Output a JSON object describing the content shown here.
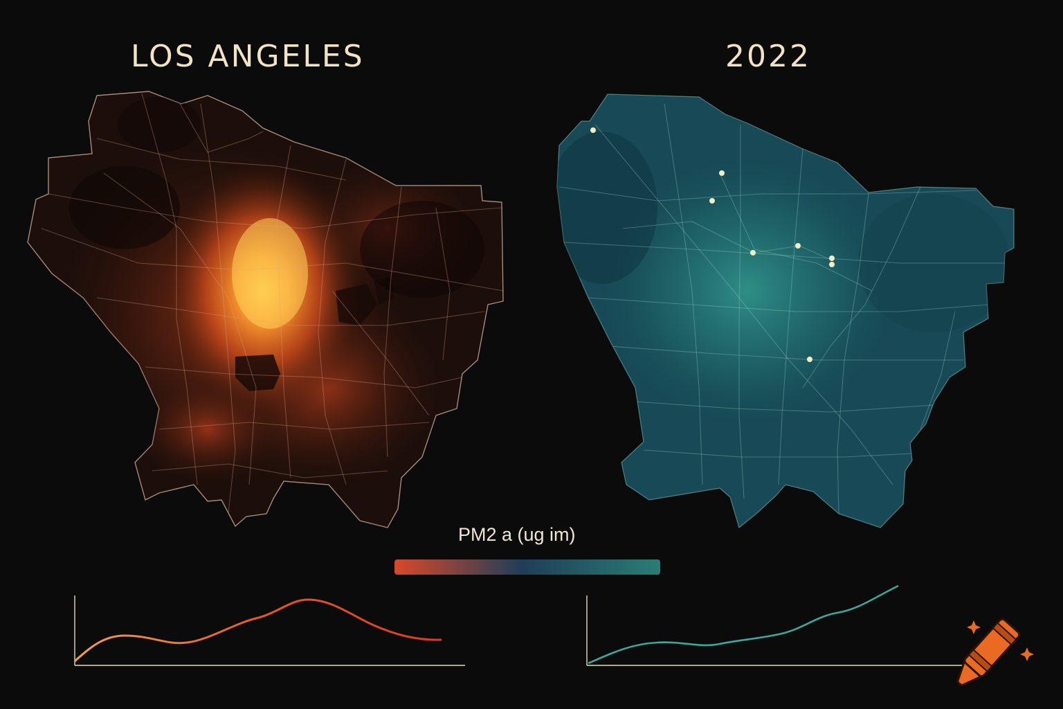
{
  "titles": {
    "left": "LOS ANGELES",
    "right": "2022"
  },
  "legend": {
    "label": "PM2 a (ug im)",
    "colors": [
      "#d9482a",
      "#1f3e58",
      "#2a7d76"
    ]
  },
  "maps": {
    "left": {
      "palette": [
        "#1a0d09",
        "#7a2a0c",
        "#f28c28",
        "#f9c14a"
      ]
    },
    "right": {
      "palette": [
        "#123844",
        "#1c5a66",
        "#2a8d8a"
      ],
      "hotspot_count": 9
    }
  },
  "trend_lines": {
    "left_color": "#e05a32",
    "right_color": "#3aa89a"
  },
  "logo": {
    "icon": "crayon-icon",
    "color": "#ea6a24"
  }
}
